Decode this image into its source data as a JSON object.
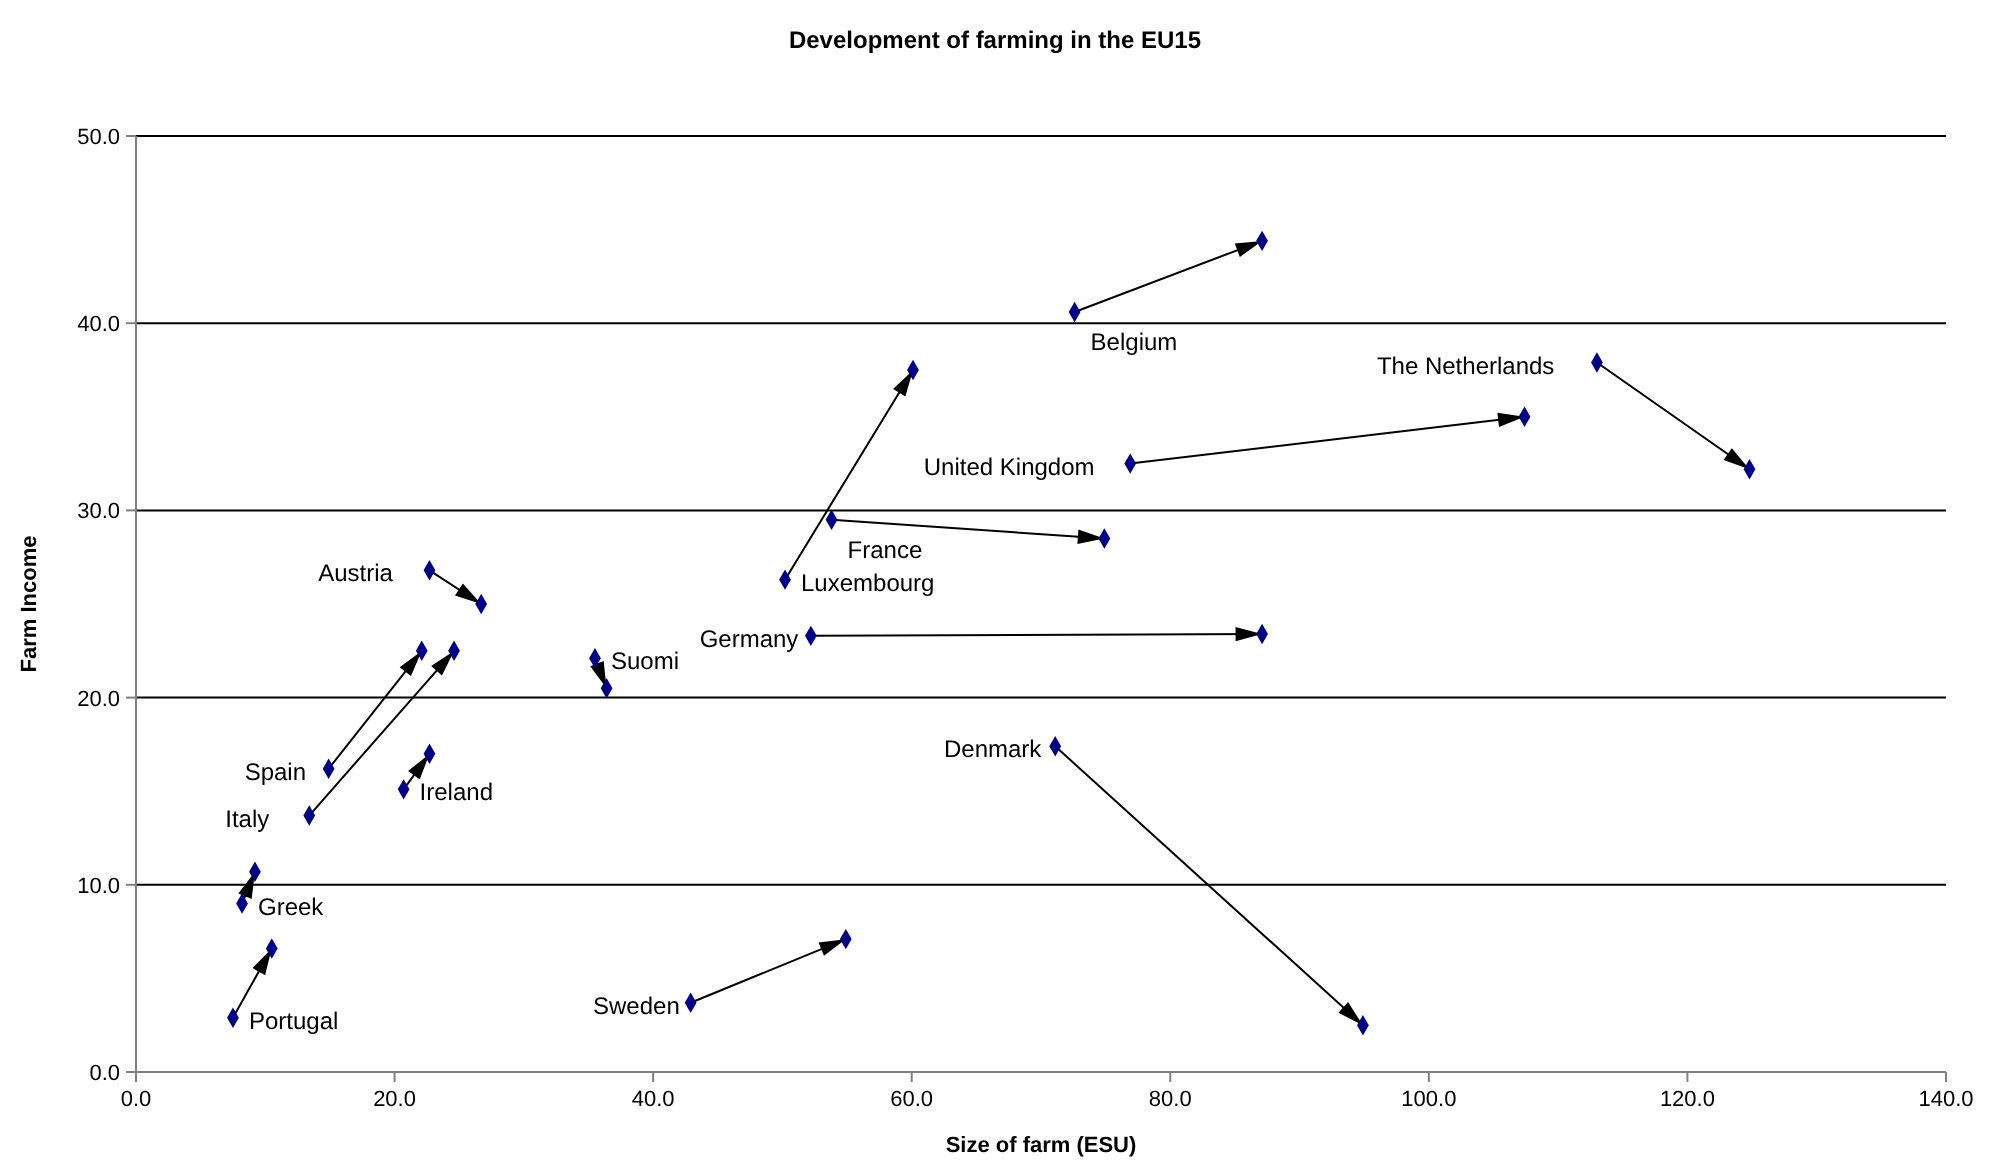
{
  "chart_data": {
    "type": "line",
    "title": "Development of farming in the EU15",
    "xlabel": "Size of farm (ESU)",
    "ylabel": "Farm Income",
    "xlim": [
      0,
      140
    ],
    "xticks": [
      {
        "value": 0,
        "label": "0.0"
      },
      {
        "value": 20,
        "label": "20.0"
      },
      {
        "value": 40,
        "label": "40.0"
      },
      {
        "value": 60,
        "label": "60.0"
      },
      {
        "value": 80,
        "label": "80.0"
      },
      {
        "value": 100,
        "label": "100.0"
      },
      {
        "value": 120,
        "label": "120.0"
      },
      {
        "value": 140,
        "label": "140.0"
      }
    ],
    "ylim": [
      0,
      50
    ],
    "yticks": [
      {
        "value": 0,
        "label": "0.0"
      },
      {
        "value": 10,
        "label": "10.0"
      },
      {
        "value": 20,
        "label": "20.0"
      },
      {
        "value": 30,
        "label": "30.0"
      },
      {
        "value": 40,
        "label": "40.0"
      },
      {
        "value": 50,
        "label": "50.0"
      }
    ],
    "grid": "y",
    "marker": "diamond",
    "series": [
      {
        "name": "Portugal",
        "color": "#000080",
        "x": [
          7.5,
          10.5
        ],
        "values": [
          2.9,
          6.6
        ]
      },
      {
        "name": "Greek",
        "color": "#000080",
        "x": [
          8.2,
          9.2
        ],
        "values": [
          9.0,
          10.7
        ]
      },
      {
        "name": "Spain",
        "color": "#000080",
        "x": [
          14.9,
          22.1
        ],
        "values": [
          16.2,
          22.5
        ]
      },
      {
        "name": "Italy",
        "color": "#000080",
        "x": [
          13.4,
          24.6
        ],
        "values": [
          13.7,
          22.5
        ]
      },
      {
        "name": "Ireland",
        "color": "#000080",
        "x": [
          20.7,
          22.7
        ],
        "values": [
          15.1,
          17.0
        ]
      },
      {
        "name": "Austria",
        "color": "#000080",
        "x": [
          22.7,
          26.7
        ],
        "values": [
          26.8,
          25.0
        ]
      },
      {
        "name": "Suomi",
        "color": "#000080",
        "x": [
          35.5,
          36.4
        ],
        "values": [
          22.1,
          20.5
        ]
      },
      {
        "name": "Sweden",
        "color": "#000080",
        "x": [
          42.9,
          54.9
        ],
        "values": [
          3.7,
          7.1
        ]
      },
      {
        "name": "Luxembourg",
        "color": "#000080",
        "x": [
          50.2,
          60.1
        ],
        "values": [
          26.3,
          37.5
        ]
      },
      {
        "name": "France",
        "color": "#000080",
        "x": [
          53.8,
          74.9
        ],
        "values": [
          29.5,
          28.5
        ]
      },
      {
        "name": "Germany",
        "color": "#000080",
        "x": [
          52.2,
          87.1
        ],
        "values": [
          23.3,
          23.4
        ]
      },
      {
        "name": "Belgium",
        "color": "#000080",
        "x": [
          72.6,
          87.1
        ],
        "values": [
          40.6,
          44.4
        ]
      },
      {
        "name": "Denmark",
        "color": "#000080",
        "x": [
          71.1,
          94.9
        ],
        "values": [
          17.4,
          2.5
        ]
      },
      {
        "name": "United Kingdom",
        "color": "#000080",
        "x": [
          76.9,
          107.4
        ],
        "values": [
          32.5,
          35.0
        ]
      },
      {
        "name": "The Netherlands",
        "color": "#000080",
        "x": [
          113.0,
          124.8
        ],
        "values": [
          37.9,
          32.2
        ]
      }
    ]
  }
}
